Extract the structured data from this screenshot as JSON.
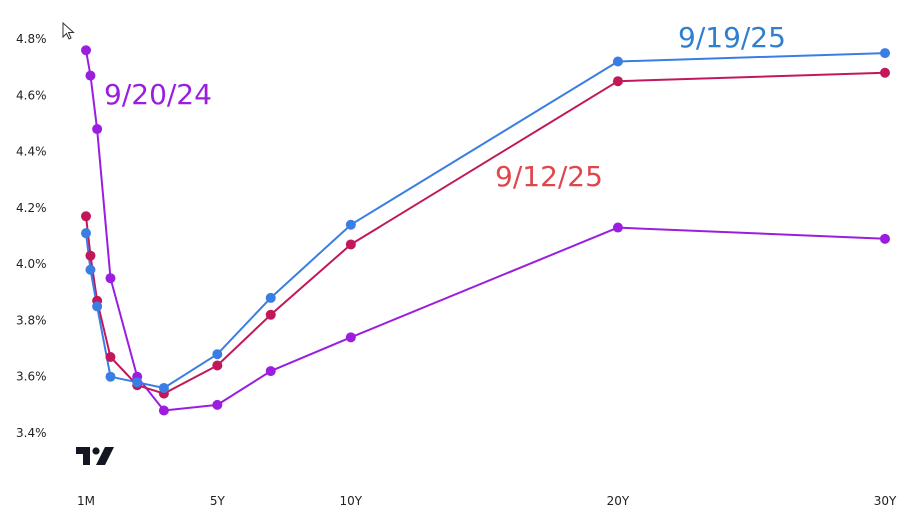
{
  "chart_data": {
    "type": "line",
    "title": "",
    "xlabel": "",
    "ylabel": "",
    "x_tick_labels": [
      {
        "label": "1M",
        "value": 0.0833
      },
      {
        "label": "5Y",
        "value": 5
      },
      {
        "label": "10Y",
        "value": 10
      },
      {
        "label": "20Y",
        "value": 20
      },
      {
        "label": "30Y",
        "value": 30
      }
    ],
    "y_tick_labels": [
      "3.4%",
      "3.6%",
      "3.8%",
      "4.0%",
      "4.2%",
      "4.4%",
      "4.6%",
      "4.8%"
    ],
    "y_ticks": [
      3.4,
      3.6,
      3.8,
      4.0,
      4.2,
      4.4,
      4.6,
      4.8
    ],
    "ylim": [
      3.4,
      4.8
    ],
    "grid": false,
    "series": [
      {
        "name": "9/20/24",
        "color": "#9b1ee0",
        "x": [
          0.0833,
          0.25,
          0.5,
          1,
          2,
          3,
          5,
          7,
          10,
          20,
          30
        ],
        "values": [
          4.76,
          4.67,
          4.48,
          3.95,
          3.6,
          3.48,
          3.5,
          3.62,
          3.74,
          4.13,
          4.09
        ]
      },
      {
        "name": "9/12/25",
        "color": "#c2185b",
        "x": [
          0.0833,
          0.25,
          0.5,
          1,
          2,
          3,
          5,
          7,
          10,
          20,
          30
        ],
        "values": [
          4.17,
          4.03,
          3.87,
          3.67,
          3.57,
          3.54,
          3.64,
          3.82,
          4.07,
          4.65,
          4.68
        ]
      },
      {
        "name": "9/19/25",
        "color": "#3a7ee4",
        "x": [
          0.0833,
          0.25,
          0.5,
          1,
          2,
          3,
          5,
          7,
          10,
          20,
          30
        ],
        "values": [
          4.11,
          3.98,
          3.85,
          3.6,
          3.58,
          3.56,
          3.68,
          3.88,
          4.14,
          4.72,
          4.75
        ]
      }
    ],
    "annotations": [
      {
        "text": "9/20/24",
        "color": "#9b1ee0"
      },
      {
        "text": "9/12/25",
        "color": "#e0474c"
      },
      {
        "text": "9/19/25",
        "color": "#2f7fd1"
      }
    ]
  }
}
